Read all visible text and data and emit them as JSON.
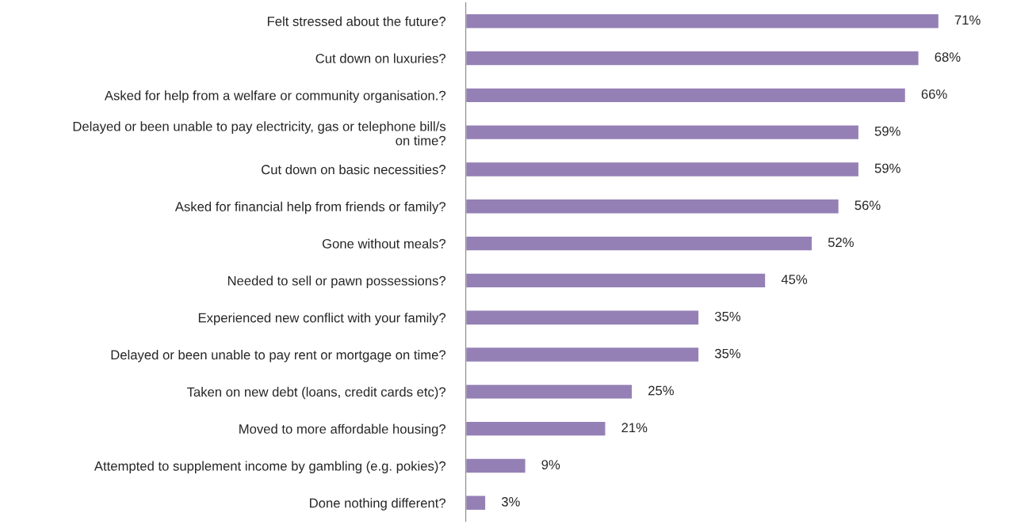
{
  "chart_data": {
    "type": "bar",
    "orientation": "horizontal",
    "categories": [
      "Felt stressed about the future?",
      "Cut down on luxuries?",
      "Asked for help from a welfare or community organisation.?",
      "Delayed or been unable to pay electricity, gas or telephone bill/s\non time?",
      "Cut down on basic necessities?",
      "Asked for financial help from friends or family?",
      "Gone without meals?",
      "Needed to sell or pawn possessions?",
      "Experienced new conflict with your family?",
      "Delayed or been unable to pay rent or mortgage on time?",
      "Taken on new debt (loans, credit cards etc)?",
      "Moved to more affordable housing?",
      "Attempted to supplement income by gambling (e.g. pokies)?",
      "Done nothing different?"
    ],
    "values": [
      71,
      68,
      66,
      59,
      59,
      56,
      52,
      45,
      35,
      35,
      25,
      21,
      9,
      3
    ],
    "value_labels": [
      "71%",
      "68%",
      "66%",
      "59%",
      "59%",
      "56%",
      "52%",
      "45%",
      "35%",
      "35%",
      "25%",
      "21%",
      "9%",
      "3%"
    ],
    "color": "#9580b5",
    "grid": false,
    "legend": false,
    "tick_labels": "y"
  }
}
